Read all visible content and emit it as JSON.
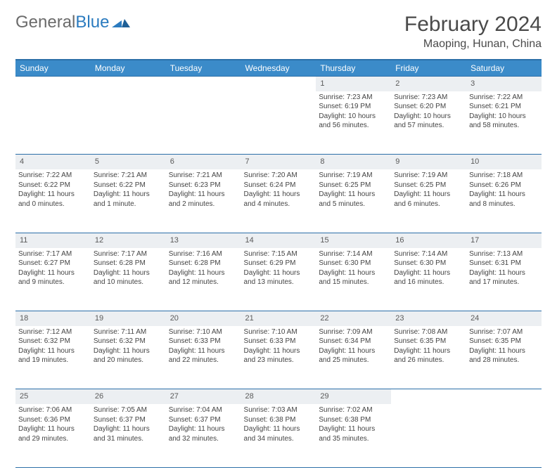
{
  "brand": {
    "part1": "General",
    "part2": "Blue"
  },
  "title": "February 2024",
  "location": "Maoping, Hunan, China",
  "colors": {
    "header_bg": "#3b8bc9",
    "header_border": "#2b6fa8",
    "daynum_bg": "#eceff2",
    "text": "#444444",
    "logo_gray": "#6b6b6b",
    "logo_blue": "#2b7bbf"
  },
  "weekdays": [
    "Sunday",
    "Monday",
    "Tuesday",
    "Wednesday",
    "Thursday",
    "Friday",
    "Saturday"
  ],
  "weeks": [
    {
      "nums": [
        "",
        "",
        "",
        "",
        "1",
        "2",
        "3"
      ],
      "cells": [
        [],
        [],
        [],
        [],
        [
          "Sunrise: 7:23 AM",
          "Sunset: 6:19 PM",
          "Daylight: 10 hours",
          "and 56 minutes."
        ],
        [
          "Sunrise: 7:23 AM",
          "Sunset: 6:20 PM",
          "Daylight: 10 hours",
          "and 57 minutes."
        ],
        [
          "Sunrise: 7:22 AM",
          "Sunset: 6:21 PM",
          "Daylight: 10 hours",
          "and 58 minutes."
        ]
      ]
    },
    {
      "nums": [
        "4",
        "5",
        "6",
        "7",
        "8",
        "9",
        "10"
      ],
      "cells": [
        [
          "Sunrise: 7:22 AM",
          "Sunset: 6:22 PM",
          "Daylight: 11 hours",
          "and 0 minutes."
        ],
        [
          "Sunrise: 7:21 AM",
          "Sunset: 6:22 PM",
          "Daylight: 11 hours",
          "and 1 minute."
        ],
        [
          "Sunrise: 7:21 AM",
          "Sunset: 6:23 PM",
          "Daylight: 11 hours",
          "and 2 minutes."
        ],
        [
          "Sunrise: 7:20 AM",
          "Sunset: 6:24 PM",
          "Daylight: 11 hours",
          "and 4 minutes."
        ],
        [
          "Sunrise: 7:19 AM",
          "Sunset: 6:25 PM",
          "Daylight: 11 hours",
          "and 5 minutes."
        ],
        [
          "Sunrise: 7:19 AM",
          "Sunset: 6:25 PM",
          "Daylight: 11 hours",
          "and 6 minutes."
        ],
        [
          "Sunrise: 7:18 AM",
          "Sunset: 6:26 PM",
          "Daylight: 11 hours",
          "and 8 minutes."
        ]
      ]
    },
    {
      "nums": [
        "11",
        "12",
        "13",
        "14",
        "15",
        "16",
        "17"
      ],
      "cells": [
        [
          "Sunrise: 7:17 AM",
          "Sunset: 6:27 PM",
          "Daylight: 11 hours",
          "and 9 minutes."
        ],
        [
          "Sunrise: 7:17 AM",
          "Sunset: 6:28 PM",
          "Daylight: 11 hours",
          "and 10 minutes."
        ],
        [
          "Sunrise: 7:16 AM",
          "Sunset: 6:28 PM",
          "Daylight: 11 hours",
          "and 12 minutes."
        ],
        [
          "Sunrise: 7:15 AM",
          "Sunset: 6:29 PM",
          "Daylight: 11 hours",
          "and 13 minutes."
        ],
        [
          "Sunrise: 7:14 AM",
          "Sunset: 6:30 PM",
          "Daylight: 11 hours",
          "and 15 minutes."
        ],
        [
          "Sunrise: 7:14 AM",
          "Sunset: 6:30 PM",
          "Daylight: 11 hours",
          "and 16 minutes."
        ],
        [
          "Sunrise: 7:13 AM",
          "Sunset: 6:31 PM",
          "Daylight: 11 hours",
          "and 17 minutes."
        ]
      ]
    },
    {
      "nums": [
        "18",
        "19",
        "20",
        "21",
        "22",
        "23",
        "24"
      ],
      "cells": [
        [
          "Sunrise: 7:12 AM",
          "Sunset: 6:32 PM",
          "Daylight: 11 hours",
          "and 19 minutes."
        ],
        [
          "Sunrise: 7:11 AM",
          "Sunset: 6:32 PM",
          "Daylight: 11 hours",
          "and 20 minutes."
        ],
        [
          "Sunrise: 7:10 AM",
          "Sunset: 6:33 PM",
          "Daylight: 11 hours",
          "and 22 minutes."
        ],
        [
          "Sunrise: 7:10 AM",
          "Sunset: 6:33 PM",
          "Daylight: 11 hours",
          "and 23 minutes."
        ],
        [
          "Sunrise: 7:09 AM",
          "Sunset: 6:34 PM",
          "Daylight: 11 hours",
          "and 25 minutes."
        ],
        [
          "Sunrise: 7:08 AM",
          "Sunset: 6:35 PM",
          "Daylight: 11 hours",
          "and 26 minutes."
        ],
        [
          "Sunrise: 7:07 AM",
          "Sunset: 6:35 PM",
          "Daylight: 11 hours",
          "and 28 minutes."
        ]
      ]
    },
    {
      "nums": [
        "25",
        "26",
        "27",
        "28",
        "29",
        "",
        ""
      ],
      "cells": [
        [
          "Sunrise: 7:06 AM",
          "Sunset: 6:36 PM",
          "Daylight: 11 hours",
          "and 29 minutes."
        ],
        [
          "Sunrise: 7:05 AM",
          "Sunset: 6:37 PM",
          "Daylight: 11 hours",
          "and 31 minutes."
        ],
        [
          "Sunrise: 7:04 AM",
          "Sunset: 6:37 PM",
          "Daylight: 11 hours",
          "and 32 minutes."
        ],
        [
          "Sunrise: 7:03 AM",
          "Sunset: 6:38 PM",
          "Daylight: 11 hours",
          "and 34 minutes."
        ],
        [
          "Sunrise: 7:02 AM",
          "Sunset: 6:38 PM",
          "Daylight: 11 hours",
          "and 35 minutes."
        ],
        [],
        []
      ]
    }
  ]
}
